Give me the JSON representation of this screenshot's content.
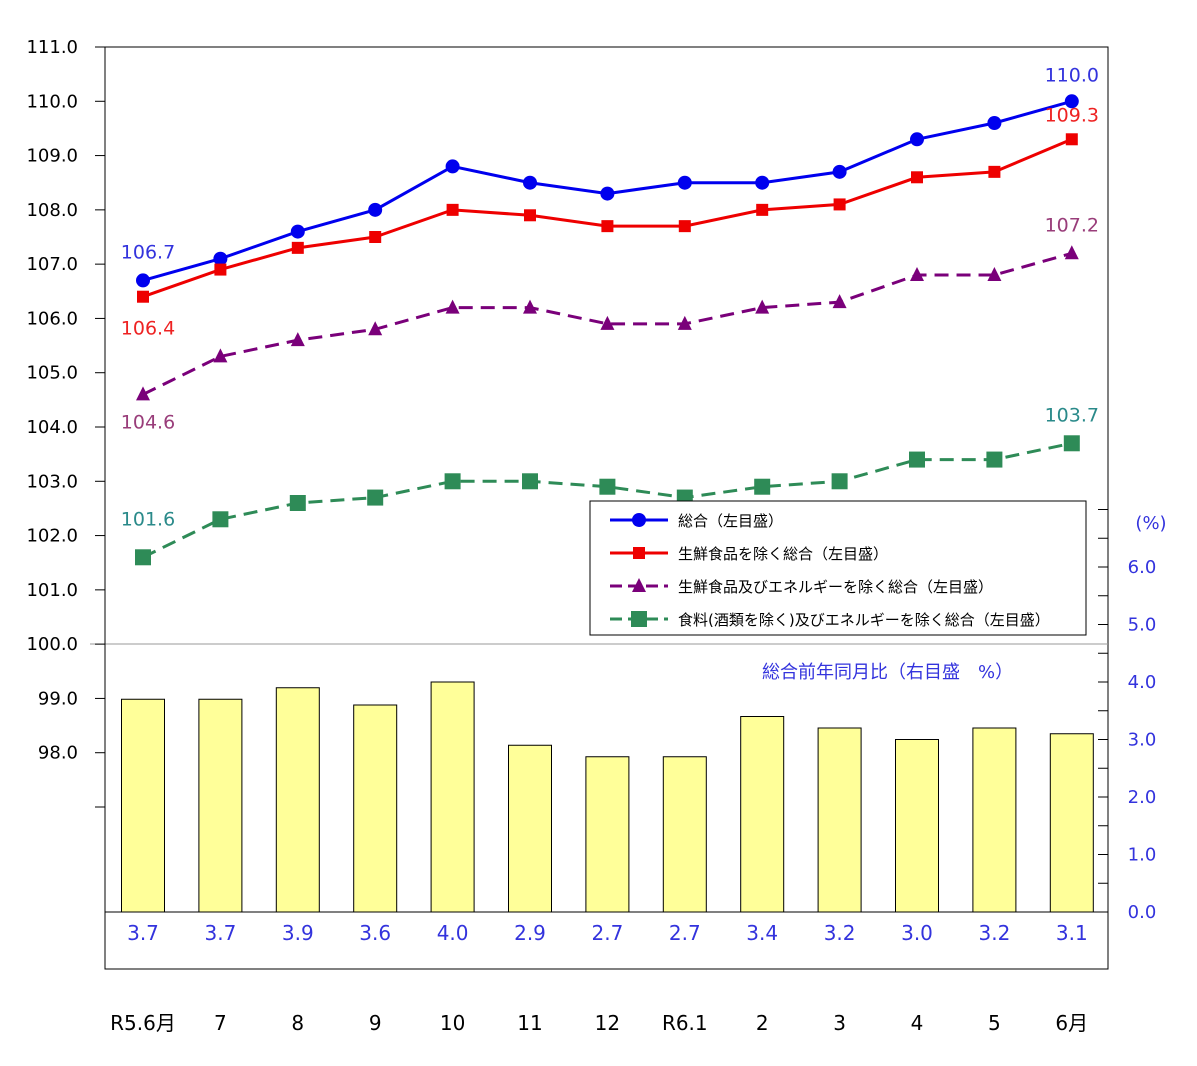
{
  "chart_data": {
    "type": "line+bar",
    "categories": [
      "R5.6月",
      "7",
      "8",
      "9",
      "10",
      "11",
      "12",
      "R6.1",
      "2",
      "3",
      "4",
      "5",
      "6月"
    ],
    "left_axis": {
      "range": [
        97.0,
        111.0
      ],
      "tick_labels": [
        "111.0",
        "110.0",
        "109.0",
        "108.0",
        "107.0",
        "106.0",
        "105.0",
        "104.0",
        "103.0",
        "102.0",
        "101.0",
        "100.0",
        "99.0",
        "98.0"
      ],
      "tick_values": [
        111,
        110,
        109,
        108,
        107,
        106,
        105,
        104,
        103,
        102,
        101,
        100,
        99,
        98
      ]
    },
    "right_axis": {
      "unit_label": "(%)",
      "range": [
        0,
        7
      ],
      "tick_labels": [
        "6.0",
        "5.0",
        "4.0",
        "3.0",
        "2.0",
        "1.0",
        "0.0"
      ],
      "tick_values": [
        6,
        5,
        4,
        3,
        2,
        1,
        0
      ]
    },
    "series": [
      {
        "name": "総合（左目盛）",
        "key": "s1",
        "color": "#0000ee",
        "dash": "",
        "marker": "circle",
        "values": [
          106.7,
          107.1,
          107.6,
          108.0,
          108.8,
          108.5,
          108.3,
          108.5,
          108.5,
          108.7,
          109.3,
          109.6,
          110.0
        ],
        "first_label": "106.7",
        "last_label": "110.0",
        "label_color": "#3333dd"
      },
      {
        "name": "生鮮食品を除く総合（左目盛）",
        "key": "s2",
        "color": "#ee0000",
        "dash": "",
        "marker": "square",
        "values": [
          106.4,
          106.9,
          107.3,
          107.5,
          108.0,
          107.9,
          107.7,
          107.7,
          108.0,
          108.1,
          108.6,
          108.7,
          109.3
        ],
        "first_label": "106.4",
        "last_label": "109.3",
        "label_color": "#ee2222"
      },
      {
        "name": "生鮮食品及びエネルギーを除く総合（左目盛）",
        "key": "s3",
        "color": "#7a007a",
        "dash": "14,8",
        "marker": "triangle",
        "values": [
          104.6,
          105.3,
          105.6,
          105.8,
          106.2,
          106.2,
          105.9,
          105.9,
          106.2,
          106.3,
          106.8,
          106.8,
          107.2
        ],
        "first_label": "104.6",
        "last_label": "107.2",
        "label_color": "#993d7a"
      },
      {
        "name": "食料(酒類を除く)及びエネルギーを除く総合（左目盛）",
        "key": "s4",
        "color": "#2e8b57",
        "dash": "14,8",
        "marker": "bigsquare",
        "values": [
          101.6,
          102.3,
          102.6,
          102.7,
          103.0,
          103.0,
          102.9,
          102.7,
          102.9,
          103.0,
          103.4,
          103.4,
          103.7
        ],
        "first_label": "101.6",
        "last_label": "103.7",
        "label_color": "#2a8a8a"
      }
    ],
    "bars": {
      "name": "総合前年同月比（右目盛　%）",
      "values": [
        3.7,
        3.7,
        3.9,
        3.6,
        4.0,
        2.9,
        2.7,
        2.7,
        3.4,
        3.2,
        3.0,
        3.2,
        3.1
      ],
      "labels": [
        "3.7",
        "3.7",
        "3.9",
        "3.6",
        "4.0",
        "2.9",
        "2.7",
        "2.7",
        "3.4",
        "3.2",
        "3.0",
        "3.2",
        "3.1"
      ],
      "fill": "#ffff99",
      "label_color": "#3333dd"
    },
    "legend": [
      "総合（左目盛）",
      "生鮮食品を除く総合（左目盛）",
      "生鮮食品及びエネルギーを除く総合（左目盛）",
      "食料(酒類を除く)及びエネルギーを除く総合（左目盛）"
    ],
    "legend_position": "center-right"
  }
}
